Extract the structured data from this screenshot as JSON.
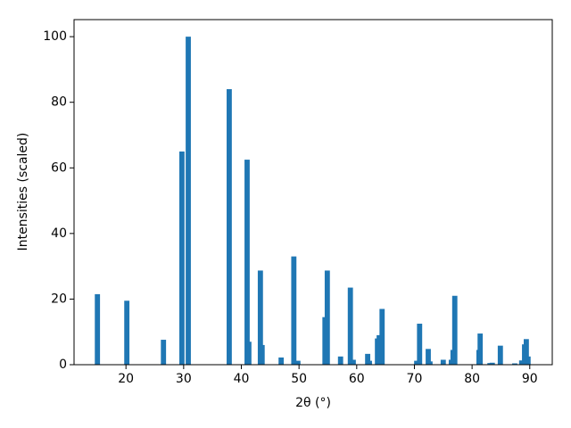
{
  "chart_data": {
    "type": "bar",
    "x_label": "2θ (°)",
    "y_label": "Intensities (scaled)",
    "x": [
      15.05,
      20.15,
      26.5,
      29.7,
      30.8,
      37.9,
      41.0,
      41.3,
      43.3,
      43.6,
      46.9,
      49.1,
      49.8,
      54.5,
      54.9,
      57.2,
      58.9,
      59.4,
      61.9,
      62.2,
      63.6,
      63.9,
      64.4,
      70.4,
      70.9,
      72.4,
      72.7,
      75.0,
      76.4,
      76.7,
      77.0,
      81.2,
      81.4,
      83.1,
      83.5,
      84.9,
      87.4,
      88.6,
      89.1,
      89.4,
      89.7
    ],
    "values": [
      21.5,
      19.5,
      7.6,
      65,
      100,
      84,
      62.5,
      7,
      28.7,
      6,
      2.2,
      33,
      1.2,
      14.5,
      28.7,
      2.5,
      23.5,
      1.5,
      3.3,
      1.2,
      8,
      9,
      17,
      1.2,
      12.5,
      4.8,
      1.0,
      1.5,
      1.5,
      4.5,
      21,
      4.5,
      9.5,
      0.5,
      0.6,
      5.8,
      0.4,
      1.3,
      6.2,
      7.8,
      2.5
    ],
    "color": "#1f77b4",
    "xlim": [
      11.0,
      93.9
    ],
    "xticks": [
      20,
      30,
      40,
      50,
      60,
      70,
      80,
      90
    ],
    "ylim": [
      0,
      105.2
    ],
    "yticks": [
      0,
      20,
      40,
      60,
      80,
      100
    ],
    "grid": false
  }
}
